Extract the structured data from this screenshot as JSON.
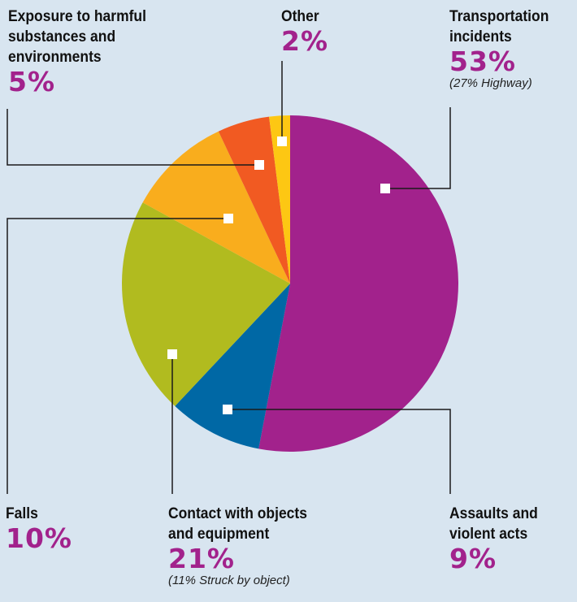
{
  "chart_data": {
    "type": "pie",
    "slices": [
      {
        "key": "transport",
        "label": "Transportation\nincidents",
        "pct_label": "53%",
        "value": 53,
        "note": "(27% Highway)",
        "color": "#a2228c"
      },
      {
        "key": "assaults",
        "label": "Assaults and\nviolent acts",
        "pct_label": "9%",
        "value": 9,
        "note": "",
        "color": "#0068a5"
      },
      {
        "key": "contact",
        "label": "Contact with objects\nand equipment",
        "pct_label": "21%",
        "value": 21,
        "note": "(11% Struck by object)",
        "color": "#b1bb1f"
      },
      {
        "key": "falls",
        "label": "Falls",
        "pct_label": "10%",
        "value": 10,
        "note": "",
        "color": "#f9ad1d"
      },
      {
        "key": "exposure",
        "label": "Exposure to harmful\nsubstances and\nenvironments",
        "pct_label": "5%",
        "value": 5,
        "note": "",
        "color": "#f15a22"
      },
      {
        "key": "other",
        "label": "Other",
        "pct_label": "2%",
        "value": 2,
        "note": "",
        "color": "#fdc713"
      }
    ]
  }
}
